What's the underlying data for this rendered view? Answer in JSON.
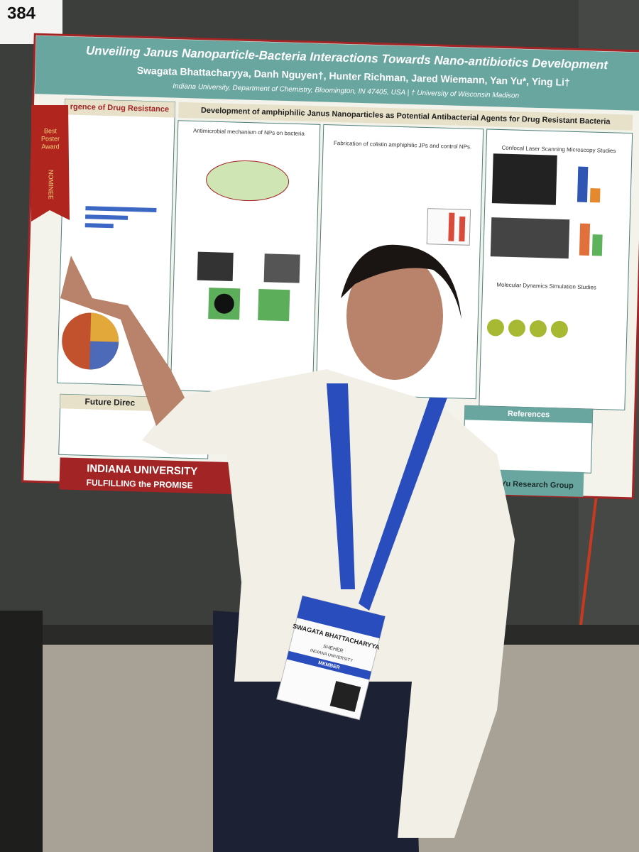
{
  "placard": "384",
  "poster": {
    "title": "Unveiling Janus Nanoparticle-Bacteria Interactions Towards Nano-antibiotics Development",
    "authors": "Swagata Bhattacharyya, Danh Nguyen†, Hunter Richman, Jared Wiemann, Yan Yu*, Ying Li†",
    "affiliation": "Indiana University, Department of Chemistry, Bloomington, IN 47405, USA | † University of Wisconsin Madison",
    "sections": [
      "rgence of Drug Resistance",
      "Development of amphiphilic Janus Nanoparticles as Potential Antibacterial Agents for Drug Resistant Bacteria",
      "Antimicrobial mechanism of NPs on bacteria",
      "Fabrication of colistin amphiphilic JPs and control NPs.",
      "Confocal Laser Scanning Microscopy Studies",
      "Molecular Dynamics Simulation Studies",
      "Future Direc",
      "References"
    ],
    "footer": [
      "INDIANA UNIVERSITY",
      "FULFILLING the PROMISE",
      "Yu Research Group"
    ]
  },
  "ribbon": [
    "Best",
    "Poster",
    "Award",
    "NOMINEE"
  ],
  "badge": {
    "name": "SWAGATA BHATTACHARYYA",
    "pronoun": "SHEHER",
    "org": "INDIANA UNIVERSITY",
    "role": "MEMBER"
  }
}
